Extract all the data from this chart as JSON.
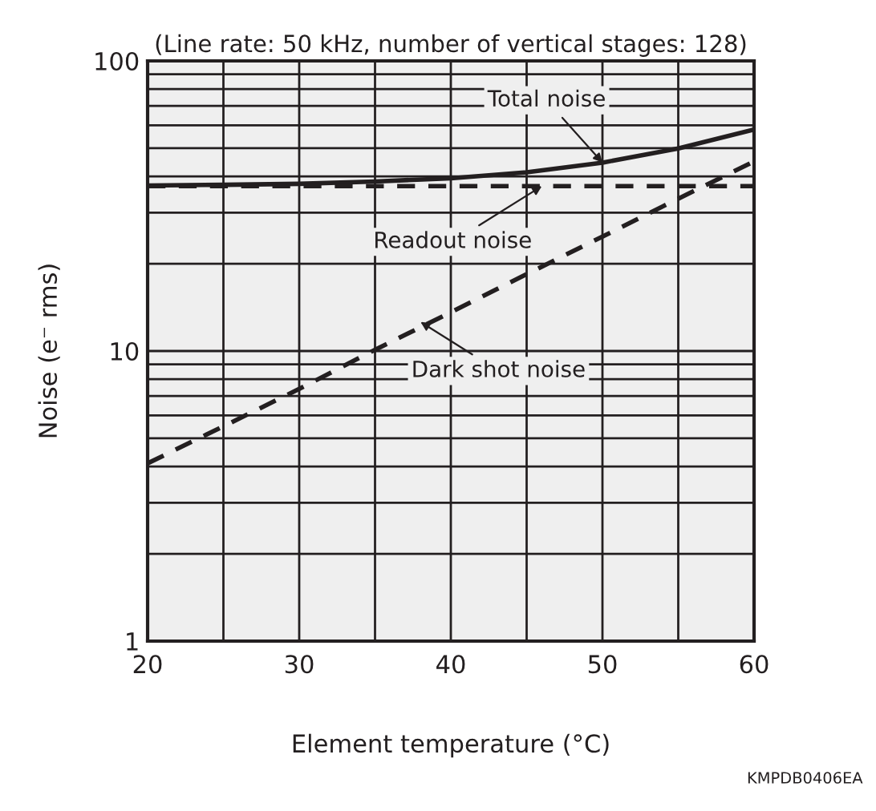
{
  "chart_data": {
    "type": "line",
    "title": "(Line rate: 50 kHz, number of vertical stages: 128)",
    "xlabel": "Element temperature (°C)",
    "ylabel": "Noise (e⁻ rms)",
    "log": "y",
    "x": [
      20,
      25,
      30,
      35,
      40,
      45,
      50,
      55,
      60
    ],
    "series": [
      {
        "color": "#231f20",
        "line_style": "solid",
        "values": [
          37.2,
          37.4,
          37.7,
          38.4,
          39.4,
          41.3,
          44.6,
          49.9,
          58
        ]
      },
      {
        "color": "#231f20",
        "line_style": "dashed",
        "values": [
          37,
          37,
          37,
          37,
          37,
          37,
          37,
          37,
          37
        ]
      },
      {
        "color": "#231f20",
        "line_style": "dashed",
        "values": [
          4.1,
          5.5,
          7.4,
          10.1,
          13.6,
          18.4,
          24.8,
          33.5,
          45
        ]
      }
    ],
    "xlim": [
      20,
      60
    ],
    "ylim": [
      1,
      100
    ],
    "xticks": [
      20,
      {
        "value": 25,
        "label": null
      },
      30,
      {
        "value": 35,
        "label": null
      },
      40,
      {
        "value": 45,
        "label": null
      },
      50,
      {
        "value": 55,
        "label": null
      },
      60
    ],
    "yticks": [
      1,
      {
        "value": 2,
        "label": null
      },
      {
        "value": 3,
        "label": null
      },
      {
        "value": 4,
        "label": null
      },
      {
        "value": 5,
        "label": null
      },
      {
        "value": 6,
        "label": null
      },
      {
        "value": 7,
        "label": null
      },
      {
        "value": 8,
        "label": null
      },
      {
        "value": 9,
        "label": null
      },
      10,
      {
        "value": 20,
        "label": null
      },
      {
        "value": 30,
        "label": null
      },
      {
        "value": 40,
        "label": null
      },
      {
        "value": 50,
        "label": null
      },
      {
        "value": 60,
        "label": null
      },
      {
        "value": 70,
        "label": null
      },
      {
        "value": 80,
        "label": null
      },
      {
        "value": 90,
        "label": null
      },
      100
    ],
    "grid": true,
    "marker": "none",
    "annotations": [
      {
        "text": "Total noise",
        "x": 50,
        "y": 44.6
      },
      {
        "text": "Readout noise",
        "x": 46,
        "y": 37
      },
      {
        "text": "Dark shot noise",
        "x": 38,
        "y": 12.6
      },
      "KMPDB0406EA"
    ]
  }
}
